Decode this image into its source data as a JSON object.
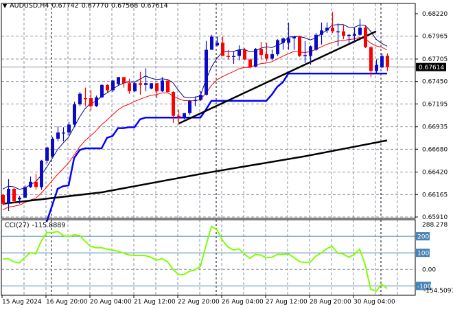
{
  "header": {
    "symbol": "AUDUSD,H4",
    "open": "0.67742",
    "high": "0.67770",
    "low": "0.67568",
    "close": "0.67614"
  },
  "cci_header": {
    "name": "CCI(27)",
    "value": "-115.8889"
  },
  "price_axis": {
    "ticks": [
      "0.68220",
      "0.67965",
      "0.67705",
      "0.67450",
      "0.67195",
      "0.66935",
      "0.66680",
      "0.66420",
      "0.66165",
      "0.65910"
    ],
    "current_price": "0.67614"
  },
  "cci_axis": {
    "max_label": "288.278",
    "min_label": "-154.5097",
    "zero_label": "0.00",
    "levels": [
      "200",
      "100",
      "-100"
    ]
  },
  "time_axis": {
    "labels": [
      "15 Aug 2024",
      "16 Aug 20:00",
      "20 Aug 04:00",
      "21 Aug 12:00",
      "22 Aug 20:00",
      "26 Aug 04:00",
      "27 Aug 12:00",
      "28 Aug 20:00",
      "30 Aug 04:00"
    ]
  },
  "colors": {
    "bull": "#0a0ac8",
    "bear": "#ff0000",
    "fast_line": "#000080",
    "slow_line": "#ff0000",
    "step_line": "#0000ff",
    "long_ma": "#000000",
    "cci_line": "#7fff00",
    "level_line": "#4682b4"
  },
  "chart_data": [
    {
      "type": "candlestick",
      "title": "AUDUSD,H4",
      "ylim": [
        0.6591,
        0.6822
      ],
      "grid": true,
      "ohlc": [
        [
          0.6616,
          0.6617,
          0.6604,
          0.6606
        ],
        [
          0.6606,
          0.6634,
          0.6598,
          0.6623
        ],
        [
          0.6623,
          0.6624,
          0.6607,
          0.6609
        ],
        [
          0.6611,
          0.6615,
          0.6606,
          0.6613
        ],
        [
          0.6613,
          0.6627,
          0.6613,
          0.6625
        ],
        [
          0.6625,
          0.6637,
          0.6624,
          0.6631
        ],
        [
          0.6631,
          0.664,
          0.6622,
          0.6625
        ],
        [
          0.6625,
          0.6656,
          0.6622,
          0.6655
        ],
        [
          0.6655,
          0.6671,
          0.6652,
          0.667
        ],
        [
          0.666,
          0.6682,
          0.6659,
          0.668
        ],
        [
          0.668,
          0.6694,
          0.6677,
          0.6687
        ],
        [
          0.6686,
          0.6693,
          0.6677,
          0.6687
        ],
        [
          0.6687,
          0.6699,
          0.6684,
          0.6696
        ],
        [
          0.6696,
          0.6722,
          0.6693,
          0.6719
        ],
        [
          0.6719,
          0.6733,
          0.6717,
          0.6731
        ],
        [
          0.6726,
          0.6738,
          0.6717,
          0.6725
        ],
        [
          0.6726,
          0.6735,
          0.6712,
          0.6717
        ],
        [
          0.6717,
          0.6729,
          0.6716,
          0.6727
        ],
        [
          0.6727,
          0.6742,
          0.6726,
          0.6741
        ],
        [
          0.6741,
          0.6742,
          0.6733,
          0.6735
        ],
        [
          0.6735,
          0.6747,
          0.6733,
          0.6746
        ],
        [
          0.6742,
          0.675,
          0.6741,
          0.675
        ],
        [
          0.675,
          0.675,
          0.6738,
          0.6743
        ],
        [
          0.6743,
          0.6748,
          0.6731,
          0.6734
        ],
        [
          0.6734,
          0.6744,
          0.6733,
          0.6743
        ],
        [
          0.6743,
          0.6756,
          0.673,
          0.6741
        ],
        [
          0.6741,
          0.676,
          0.6734,
          0.6743
        ],
        [
          0.6737,
          0.6743,
          0.6736,
          0.6743
        ],
        [
          0.6743,
          0.6743,
          0.6726,
          0.6734
        ],
        [
          0.6734,
          0.675,
          0.6733,
          0.6746
        ],
        [
          0.6746,
          0.6746,
          0.6733,
          0.6733
        ],
        [
          0.6733,
          0.6734,
          0.6698,
          0.6706
        ],
        [
          0.6706,
          0.6713,
          0.6696,
          0.6704
        ],
        [
          0.6703,
          0.6709,
          0.6702,
          0.6709
        ],
        [
          0.6709,
          0.6724,
          0.6707,
          0.6723
        ],
        [
          0.6723,
          0.6728,
          0.6717,
          0.6724
        ],
        [
          0.6724,
          0.6734,
          0.6723,
          0.673
        ],
        [
          0.673,
          0.6791,
          0.6729,
          0.6781
        ],
        [
          0.6781,
          0.6798,
          0.6781,
          0.6796
        ],
        [
          0.6786,
          0.6796,
          0.6785,
          0.6789
        ],
        [
          0.6789,
          0.6796,
          0.6774,
          0.6774
        ],
        [
          0.6774,
          0.6781,
          0.677,
          0.6773
        ],
        [
          0.6774,
          0.6779,
          0.6765,
          0.6774
        ],
        [
          0.6774,
          0.6786,
          0.6769,
          0.6781
        ],
        [
          0.6781,
          0.6783,
          0.6769,
          0.677
        ],
        [
          0.677,
          0.6771,
          0.676,
          0.6761
        ],
        [
          0.6762,
          0.6783,
          0.6761,
          0.6782
        ],
        [
          0.6782,
          0.679,
          0.677,
          0.6775
        ],
        [
          0.6776,
          0.6789,
          0.6768,
          0.6771
        ],
        [
          0.6771,
          0.6781,
          0.6769,
          0.6776
        ],
        [
          0.6776,
          0.6793,
          0.6774,
          0.6792
        ],
        [
          0.6789,
          0.6795,
          0.6781,
          0.6794
        ],
        [
          0.6789,
          0.6812,
          0.6781,
          0.6794
        ],
        [
          0.6794,
          0.6797,
          0.6781,
          0.6796
        ],
        [
          0.6796,
          0.6797,
          0.6773,
          0.6774
        ],
        [
          0.6774,
          0.6791,
          0.6766,
          0.6775
        ],
        [
          0.6774,
          0.6786,
          0.6764,
          0.6785
        ],
        [
          0.6781,
          0.68,
          0.678,
          0.6798
        ],
        [
          0.6798,
          0.6812,
          0.6787,
          0.6803
        ],
        [
          0.6803,
          0.6812,
          0.68,
          0.6806
        ],
        [
          0.6806,
          0.6824,
          0.68,
          0.6802
        ],
        [
          0.6802,
          0.6811,
          0.6785,
          0.6802
        ],
        [
          0.6802,
          0.681,
          0.6793,
          0.6797
        ],
        [
          0.6797,
          0.6799,
          0.6789,
          0.6798
        ],
        [
          0.6797,
          0.6806,
          0.6789,
          0.6799
        ],
        [
          0.6798,
          0.6816,
          0.6797,
          0.6806
        ],
        [
          0.6806,
          0.6808,
          0.6783,
          0.6784
        ],
        [
          0.6784,
          0.6785,
          0.675,
          0.6757
        ],
        [
          0.6757,
          0.677,
          0.6754,
          0.6764
        ],
        [
          0.6761,
          0.6777,
          0.676,
          0.6774
        ],
        [
          0.67742,
          0.6777,
          0.67568,
          0.67614
        ]
      ],
      "step_line": [
        null,
        null,
        null,
        null,
        null,
        null,
        null,
        null,
        null,
        0.6604,
        0.6623,
        0.6626,
        0.6627,
        0.6658,
        0.6667,
        0.6669,
        0.6669,
        0.6669,
        0.6669,
        0.6681,
        0.6683,
        0.6692,
        0.6692,
        0.6693,
        0.6693,
        0.6702,
        0.6704,
        0.6704,
        0.6704,
        0.6704,
        0.6704,
        0.6704,
        0.6704,
        0.6704,
        0.6704,
        0.6704,
        0.6704,
        0.6713,
        0.6723,
        0.6723,
        0.6723,
        0.6723,
        0.6723,
        0.6723,
        0.6723,
        0.6723,
        0.6723,
        0.6723,
        0.6723,
        0.673,
        0.6739,
        0.6744,
        0.6754,
        0.6754,
        0.6754,
        0.6754,
        0.6754,
        0.6754,
        0.6754,
        0.6754,
        0.6754,
        0.6754,
        0.6754,
        0.6754,
        0.6754,
        0.6754,
        0.6754,
        0.6754,
        0.6754,
        0.6754,
        0.6754
      ],
      "long_ma": [
        [
          0,
          0.6606
        ],
        [
          18,
          0.6619
        ],
        [
          37,
          0.6641
        ],
        [
          55,
          0.666
        ],
        [
          70,
          0.6678
        ]
      ],
      "trendline": [
        [
          32,
          0.6697
        ],
        [
          68,
          0.6802
        ]
      ]
    },
    {
      "type": "line",
      "title": "CCI(27)",
      "ylim": [
        -154.5097,
        288.278
      ],
      "levels": [
        200,
        100,
        0,
        -100
      ],
      "values": [
        62,
        65,
        46,
        39,
        71,
        101,
        94,
        170,
        222,
        222,
        229,
        205,
        198,
        209,
        205,
        170,
        139,
        131,
        131,
        122,
        117,
        110,
        98,
        87,
        84,
        84,
        83,
        73,
        55,
        65,
        46,
        1,
        -31,
        -31,
        -12,
        -3,
        18,
        142,
        260,
        239,
        177,
        135,
        117,
        124,
        94,
        66,
        90,
        87,
        71,
        73,
        90,
        90,
        94,
        73,
        48,
        41,
        44,
        80,
        98,
        126,
        139,
        98,
        94,
        73,
        90,
        122,
        30,
        -120,
        -132,
        -90,
        -116
      ]
    }
  ]
}
